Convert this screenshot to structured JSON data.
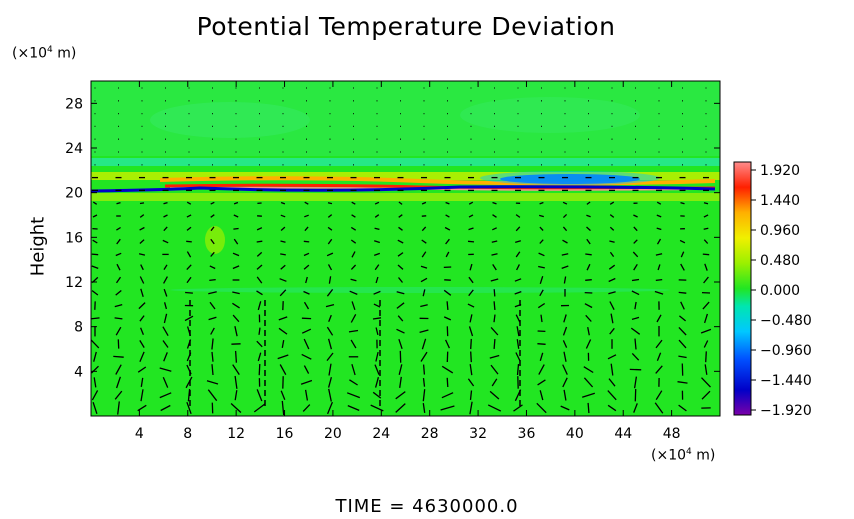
{
  "chart_data": {
    "type": "heatmap",
    "title": "Potential Temperature Deviation",
    "ylabel": "Height",
    "y_unit_base": "(×10",
    "y_unit_exp": "4",
    "y_unit_tail": " m)",
    "x_unit_base": "(×10",
    "x_unit_exp": "4",
    "x_unit_tail": " m)",
    "xlim": [
      0,
      52
    ],
    "ylim": [
      0,
      30
    ],
    "xticks": [
      4,
      8,
      12,
      16,
      20,
      24,
      28,
      32,
      36,
      40,
      44,
      48
    ],
    "yticks": [
      4,
      8,
      12,
      16,
      20,
      24,
      28
    ],
    "colorbar": {
      "ticks": [
        "1.920",
        "1.440",
        "0.960",
        "0.480",
        "0.000",
        "−0.480",
        "−0.960",
        "−1.440",
        "−1.920"
      ],
      "range": [
        -1.92,
        1.92
      ]
    },
    "overlay": "wind vectors",
    "background_color": "#22e622"
  },
  "footer": {
    "time_label": "TIME  =  4630000.0"
  }
}
